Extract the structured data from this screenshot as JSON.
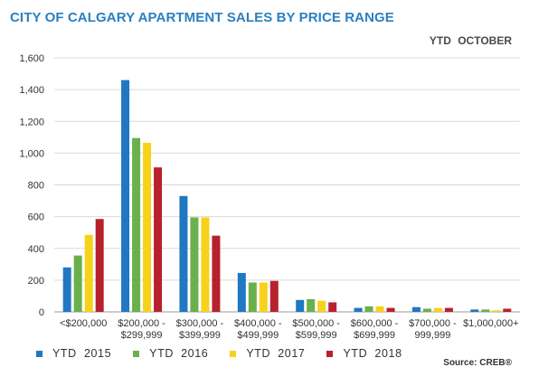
{
  "title": "CITY OF CALGARY APARTMENT SALES BY PRICE RANGE",
  "subtitle": "YTD OCTOBER",
  "source": "Source: CREB®",
  "chart_data": {
    "type": "bar",
    "categories": [
      [
        "<$200,000"
      ],
      [
        "$200,000 -",
        "$299,999"
      ],
      [
        "$300,000 -",
        "$399,999"
      ],
      [
        "$400,000 -",
        "$499,999"
      ],
      [
        "$500,000 -",
        "$599,999"
      ],
      [
        "$600,000 -",
        "$699,999"
      ],
      [
        "$700,000 -",
        "999,999"
      ],
      [
        "$1,000,000+"
      ]
    ],
    "series": [
      {
        "name": "YTD  2015",
        "color": "#1f78c1",
        "values": [
          280,
          1460,
          730,
          245,
          75,
          25,
          30,
          15
        ]
      },
      {
        "name": "YTD  2016",
        "color": "#6ab04c",
        "values": [
          355,
          1095,
          595,
          185,
          80,
          35,
          20,
          15
        ]
      },
      {
        "name": "YTD  2017",
        "color": "#f7d21b",
        "values": [
          485,
          1065,
          595,
          185,
          70,
          35,
          25,
          10
        ]
      },
      {
        "name": "YTD  2018",
        "color": "#b8202e",
        "values": [
          585,
          910,
          480,
          195,
          60,
          25,
          25,
          20
        ]
      }
    ],
    "ylim": [
      0,
      1600
    ],
    "yticks": [
      0,
      200,
      400,
      600,
      800,
      1000,
      1200,
      1400,
      1600
    ],
    "ytick_labels": [
      "0",
      "200",
      "400",
      "600",
      "800",
      "1,000",
      "1,200",
      "1,400",
      "1,600"
    ],
    "grid": true,
    "legend_position": "bottom"
  }
}
